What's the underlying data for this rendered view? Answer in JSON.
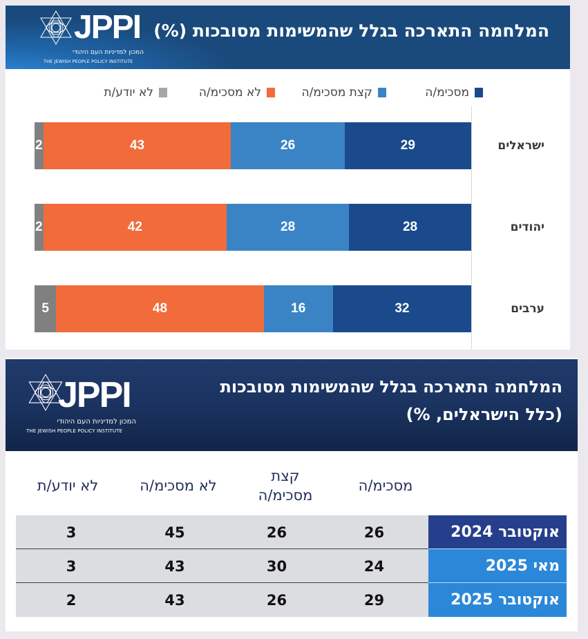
{
  "panel1": {
    "logo": {
      "wordmark": "JPPI",
      "subtitle_he": "המכון למדיניות העם היהודי",
      "subtitle_en": "THE JEWISH PEOPLE POLICY INSTITUTE"
    },
    "title": "המלחמה התארכה בגלל שהמשימות מסובכות (%)"
  },
  "panel2": {
    "logo": {
      "wordmark": "JPPI",
      "subtitle_he": "המכון למדיניות העם היהודי",
      "subtitle_en": "THE JEWISH PEOPLE POLICY INSTITUTE"
    },
    "title_line1": "המלחמה התארכה בגלל שהמשימות מסובכות",
    "title_line2": "(כלל הישראלים, %)"
  },
  "colors": {
    "agree": "#1a4a8c",
    "somewhat_agree": "#3a84c6",
    "disagree": "#f26b3a",
    "dont_know": "#808080",
    "row_label_dark": "#263f8c",
    "row_label_light": "#2b87d8"
  },
  "chart_data": [
    {
      "type": "bar",
      "orientation": "horizontal-stacked",
      "title": "המלחמה התארכה בגלל שהמשימות מסובכות (%)",
      "categories": [
        "ישראלים",
        "יהודים",
        "ערבים"
      ],
      "series": [
        {
          "name": "מסכימ/ה",
          "color": "#1a4a8c",
          "values": [
            29,
            28,
            32
          ]
        },
        {
          "name": "קצת מסכימ/ה",
          "color": "#3a84c6",
          "values": [
            26,
            28,
            16
          ]
        },
        {
          "name": "לא מסכימ/ה",
          "color": "#f26b3a",
          "values": [
            43,
            42,
            48
          ]
        },
        {
          "name": "לא יודע/ת",
          "color": "#808080",
          "values": [
            2,
            2,
            5
          ]
        }
      ],
      "xlabel": "",
      "ylabel": "",
      "xlim": [
        0,
        100
      ],
      "grid": false,
      "legend": "top",
      "direction": "rtl"
    },
    {
      "type": "table",
      "title": "המלחמה התארכה בגלל שהמשימות מסובכות (כלל הישראלים, %)",
      "columns": [
        "מסכימ/ה",
        "קצת מסכימ/ה",
        "לא מסכימ/ה",
        "לא יודע/ת"
      ],
      "column_display": [
        "מסכימ/ה",
        "קצת\nמסכימ/ה",
        "לא מסכימ/ה",
        "לא יודע/ת"
      ],
      "rows": [
        {
          "label": "אוקטובר 2024",
          "values": [
            26,
            26,
            45,
            3
          ]
        },
        {
          "label": "מאי 2025",
          "values": [
            24,
            30,
            43,
            3
          ]
        },
        {
          "label": "אוקטובר 2025",
          "values": [
            29,
            26,
            43,
            2
          ]
        }
      ]
    }
  ]
}
